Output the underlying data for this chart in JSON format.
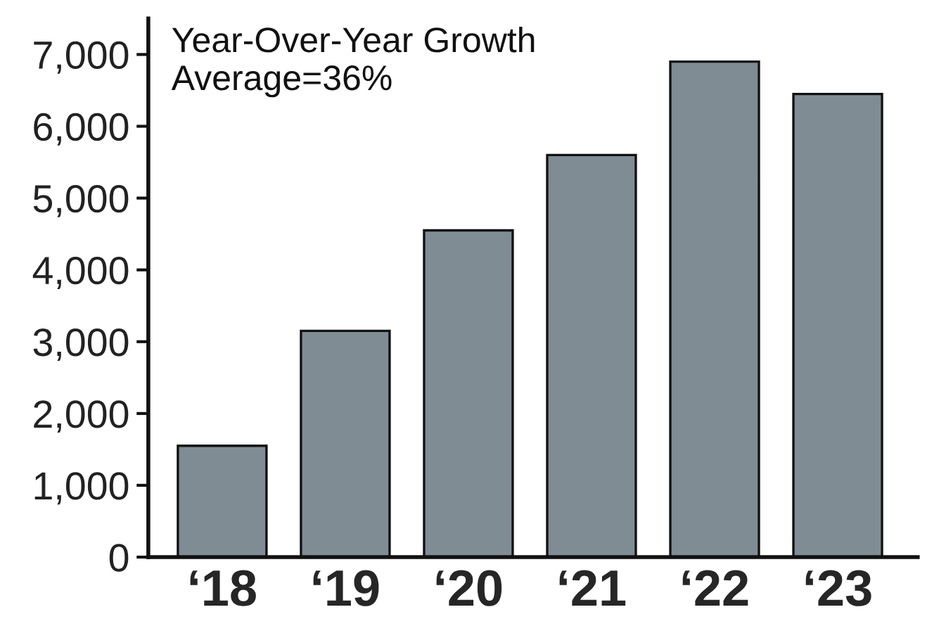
{
  "chart_data": {
    "type": "bar",
    "categories": [
      "‘18",
      "‘19",
      "‘20",
      "‘21",
      "‘22",
      "‘23"
    ],
    "values": [
      1550,
      3150,
      4550,
      5600,
      6900,
      6450
    ],
    "color": "#7f8c93",
    "ylim": [
      0,
      7500
    ],
    "yticks": [
      {
        "value": 0,
        "label": "0"
      },
      {
        "value": 1000,
        "label": "1,000"
      },
      {
        "value": 2000,
        "label": "2,000"
      },
      {
        "value": 3000,
        "label": "3,000"
      },
      {
        "value": 4000,
        "label": "4,000"
      },
      {
        "value": 5000,
        "label": "5,000"
      },
      {
        "value": 6000,
        "label": "6,000"
      },
      {
        "value": 7000,
        "label": "7,000"
      }
    ],
    "grid": false,
    "legend": false,
    "annotations": [
      "Year-Over-Year Growth\nAverage=36%"
    ]
  }
}
